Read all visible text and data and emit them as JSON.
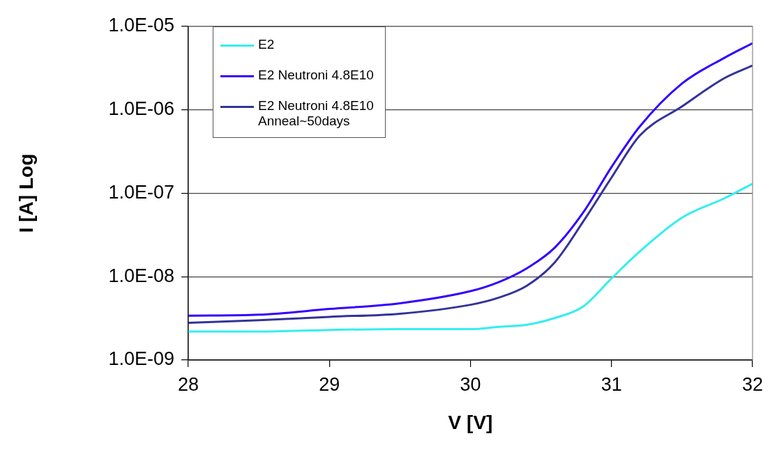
{
  "chart_data": {
    "type": "line",
    "xlabel": "V [V]",
    "ylabel": "I [A] Log",
    "log": "y",
    "grid": "y",
    "legend": "top left",
    "marker": "none",
    "line_style": "solid",
    "xlim": [
      28,
      32
    ],
    "xticks": [
      28,
      29,
      30,
      31,
      32
    ],
    "ylim": [
      1e-09,
      1e-05
    ],
    "yticks": [
      {
        "value": 1e-09,
        "label": "1.0E-09"
      },
      {
        "value": 1e-08,
        "label": "1.0E-08"
      },
      {
        "value": 1e-07,
        "label": "1.0E-07"
      },
      {
        "value": 1e-06,
        "label": "1.0E-06"
      },
      {
        "value": 1e-05,
        "label": "1.0E-05"
      }
    ],
    "x": [
      28,
      28.5,
      29,
      29.5,
      30,
      30.2,
      30.4,
      30.6,
      30.8,
      31,
      31.2,
      31.5,
      31.8,
      32
    ],
    "series": [
      {
        "name": "E2",
        "color": "#33eef0",
        "values": [
          2.2e-09,
          2.2e-09,
          2.3e-09,
          2.35e-09,
          2.35e-09,
          2.5e-09,
          2.65e-09,
          3.2e-09,
          4.4e-09,
          9.5e-09,
          2e-08,
          5.1e-08,
          8.7e-08,
          1.3e-07
        ]
      },
      {
        "name": "E2 Neutroni 4.8E10",
        "color": "#3300ff",
        "values": [
          3.4e-09,
          3.5e-09,
          4.1e-09,
          4.8e-09,
          6.7e-09,
          8.6e-09,
          1.26e-08,
          2.25e-08,
          5.9e-08,
          2.06e-07,
          6.3e-07,
          2.07e-06,
          4.2e-06,
          6.3e-06
        ]
      },
      {
        "name": "E2 Neutroni 4.8E10 Anneal~50days",
        "color": "#333399",
        "values": [
          2.8e-09,
          3e-09,
          3.3e-09,
          3.6e-09,
          4.6e-09,
          5.6e-09,
          7.8e-09,
          1.5e-08,
          4.6e-08,
          1.54e-07,
          4.9e-07,
          1.1e-06,
          2.4e-06,
          3.4e-06
        ]
      }
    ]
  }
}
